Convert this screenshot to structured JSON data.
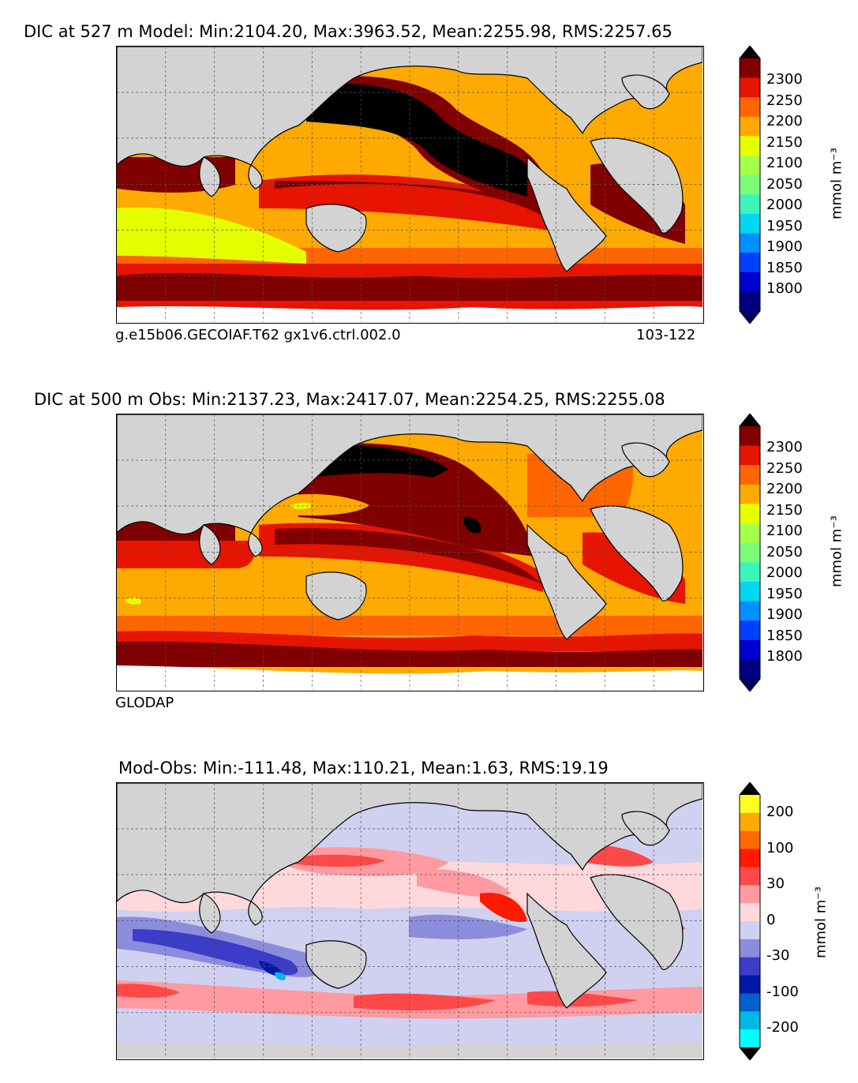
{
  "panels": [
    {
      "title": "DIC at 527 m Model: Min:2104.20, Max:3963.52, Mean:2255.98, RMS:2257.65",
      "caption_left": "g.e15b06.GECOIAF.T62 gx1v6.ctrl.002.0",
      "caption_right": "103-122",
      "colorbar": {
        "ticks": [
          "2300",
          "2250",
          "2200",
          "2150",
          "2100",
          "2050",
          "2000",
          "1950",
          "1900",
          "1850",
          "1800"
        ],
        "units": "mmol m⁻³",
        "colors": [
          "#000080",
          "#0000cd",
          "#0040ff",
          "#0090ff",
          "#00d8f0",
          "#3cf5b8",
          "#7dfc7a",
          "#a8ff4a",
          "#e6ff00",
          "#ffaa00",
          "#ff6600",
          "#e61400",
          "#800000"
        ],
        "over_color": "#000000",
        "under_color": "#000060"
      }
    },
    {
      "title": "DIC at 500 m Obs: Min:2137.23, Max:2417.07, Mean:2254.25, RMS:2255.08",
      "caption_left": "GLODAP",
      "caption_right": "",
      "colorbar": {
        "ticks": [
          "2300",
          "2250",
          "2200",
          "2150",
          "2100",
          "2050",
          "2000",
          "1950",
          "1900",
          "1850",
          "1800"
        ],
        "units": "mmol m⁻³",
        "colors": [
          "#000080",
          "#0000cd",
          "#0040ff",
          "#0090ff",
          "#00d8f0",
          "#3cf5b8",
          "#7dfc7a",
          "#a8ff4a",
          "#e6ff00",
          "#ffaa00",
          "#ff6600",
          "#e61400",
          "#800000"
        ],
        "over_color": "#000000",
        "under_color": "#000060"
      }
    },
    {
      "title": "Mod-Obs: Min:-111.48, Max:110.21, Mean:1.63, RMS:19.19",
      "caption_left": "",
      "caption_right": "",
      "colorbar": {
        "ticks": [
          "200",
          "100",
          "30",
          "0",
          "-30",
          "-100",
          "-200"
        ],
        "units": "mmol m⁻³",
        "colors": [
          "#00ffff",
          "#00b8e6",
          "#0060cc",
          "#0018a8",
          "#3c3cc8",
          "#8c8cdc",
          "#d0d0f0",
          "#ffd8dc",
          "#ff9aa0",
          "#ff4848",
          "#ff1a00",
          "#ff6a00",
          "#ffaa00",
          "#ffff20"
        ],
        "over_color": "#000000",
        "under_color": "#000000"
      }
    }
  ],
  "land_color": "#d3d3d3"
}
